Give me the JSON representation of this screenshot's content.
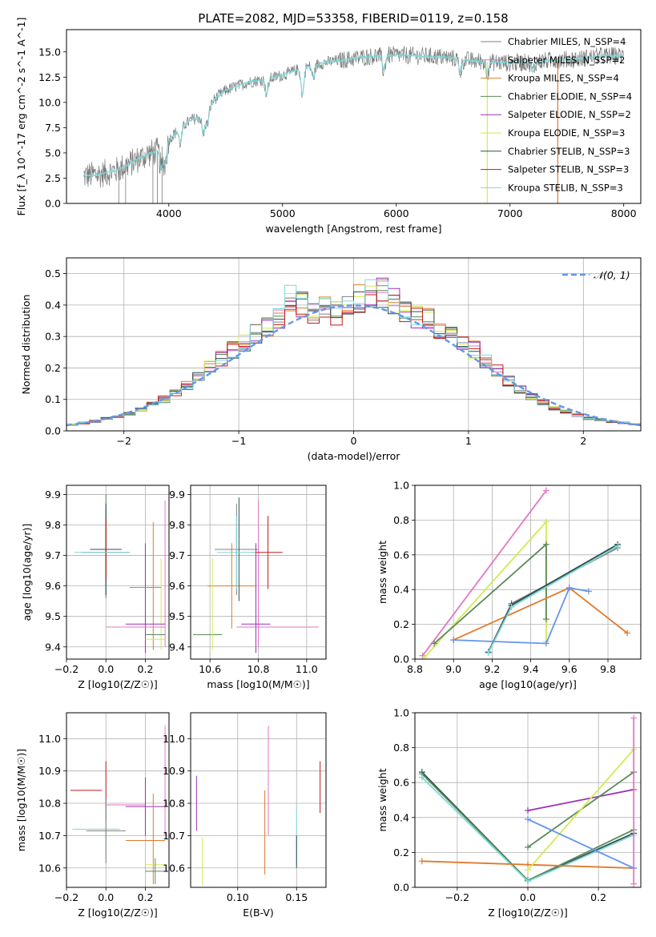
{
  "figure": {
    "title": "PLATE=2082, MJD=53358, FIBERID=0119, z=0.158"
  },
  "colors": {
    "Chabrier MILES": "#808080",
    "Salpeter MILES": "#e377c2",
    "Kroupa MILES": "#e07a2b",
    "Chabrier ELODIE": "#5a8a5a",
    "Salpeter ELODIE": "#9a30b8",
    "Kroupa ELODIE": "#d4ea50",
    "Chabrier STELIB": "#2f4f4f",
    "Salpeter STELIB": "#c41a1a",
    "Kroupa STELIB": "#7fd7d7",
    "spectrum": "#7a7a7a",
    "normal": "#6495ed",
    "grid": "#b0b0b0"
  },
  "chart_data": [
    {
      "id": "spectrum",
      "type": "line",
      "xlabel": "wavelength [Angstrom, rest frame]",
      "ylabel": "Flux [f_λ 10^-17 erg cm^-2 s^-1 A^-1]",
      "xlim": [
        3100,
        8150
      ],
      "ylim": [
        0,
        17.2
      ],
      "xticks": [
        4000,
        5000,
        6000,
        7000,
        8000
      ],
      "yticks": [
        0.0,
        2.5,
        5.0,
        7.5,
        10.0,
        12.5,
        15.0
      ],
      "grid": false,
      "legend_position": "upper right",
      "legend": [
        {
          "label": "Chabrier MILES, N_SSP=4",
          "color": "#808080"
        },
        {
          "label": "Salpeter MILES, N_SSP=2",
          "color": "#e377c2"
        },
        {
          "label": "Kroupa MILES, N_SSP=4",
          "color": "#e07a2b"
        },
        {
          "label": "Chabrier ELODIE, N_SSP=4",
          "color": "#5a8a5a"
        },
        {
          "label": "Salpeter ELODIE, N_SSP=2",
          "color": "#9a30b8"
        },
        {
          "label": "Kroupa ELODIE, N_SSP=3",
          "color": "#d4ea50"
        },
        {
          "label": "Chabrier STELIB, N_SSP=3",
          "color": "#2f4f4f"
        },
        {
          "label": "Salpeter STELIB, N_SSP=3",
          "color": "#c41a1a"
        },
        {
          "label": "Kroupa STELIB, N_SSP=3",
          "color": "#7fd7d7"
        }
      ],
      "continuum": [
        [
          3250,
          2.7
        ],
        [
          3400,
          2.9
        ],
        [
          3550,
          3.3
        ],
        [
          3700,
          4.2
        ],
        [
          3800,
          4.8
        ],
        [
          3900,
          5.2
        ],
        [
          4000,
          6.3
        ],
        [
          4100,
          7.5
        ],
        [
          4200,
          8.3
        ],
        [
          4300,
          8.6
        ],
        [
          4400,
          10.3
        ],
        [
          4500,
          11.2
        ],
        [
          4700,
          12.0
        ],
        [
          4900,
          12.4
        ],
        [
          5000,
          12.7
        ],
        [
          5200,
          13.5
        ],
        [
          5400,
          14.0
        ],
        [
          5600,
          14.3
        ],
        [
          5800,
          14.6
        ],
        [
          6000,
          14.7
        ],
        [
          6200,
          14.6
        ],
        [
          6400,
          14.5
        ],
        [
          6600,
          14.2
        ],
        [
          6800,
          14.0
        ],
        [
          7000,
          13.9
        ],
        [
          7200,
          14.0
        ],
        [
          7400,
          14.2
        ],
        [
          7600,
          14.3
        ],
        [
          7800,
          14.6
        ],
        [
          8000,
          14.6
        ]
      ],
      "absorption": [
        [
          3934,
          2.2
        ],
        [
          3968,
          2.0
        ],
        [
          4102,
          1.6
        ],
        [
          4304,
          1.8
        ],
        [
          4340,
          1.4
        ],
        [
          4861,
          1.5
        ],
        [
          5175,
          2.6
        ],
        [
          5270,
          1.2
        ],
        [
          5890,
          1.5
        ],
        [
          6563,
          1.2
        ],
        [
          6800,
          1.0
        ],
        [
          7200,
          1.0
        ]
      ],
      "vertical_drops": [
        {
          "x": 6800,
          "color": "#d4ea50"
        },
        {
          "x": 7420,
          "color": "#e07a2b"
        }
      ]
    },
    {
      "id": "residual-histogram",
      "type": "histogram",
      "xlabel": "(data-model)/error",
      "ylabel": "Normed distribution",
      "xlim": [
        -2.5,
        2.5
      ],
      "ylim": [
        0,
        0.55
      ],
      "xticks": [
        -2,
        -1,
        0,
        1,
        2
      ],
      "yticks": [
        0.0,
        0.1,
        0.2,
        0.3,
        0.4,
        0.5
      ],
      "grid": true,
      "legend_position": "upper right",
      "legend": [
        {
          "label": "𝒩(0, 1)",
          "color": "#6495ed",
          "style": "dashed"
        }
      ],
      "bin_width": 0.1,
      "base_density": [
        0.02,
        0.025,
        0.03,
        0.04,
        0.045,
        0.055,
        0.07,
        0.085,
        0.1,
        0.12,
        0.145,
        0.17,
        0.2,
        0.23,
        0.26,
        0.28,
        0.31,
        0.33,
        0.36,
        0.42,
        0.4,
        0.37,
        0.39,
        0.37,
        0.4,
        0.42,
        0.44,
        0.44,
        0.41,
        0.39,
        0.36,
        0.36,
        0.33,
        0.3,
        0.29,
        0.26,
        0.22,
        0.19,
        0.16,
        0.13,
        0.11,
        0.09,
        0.07,
        0.06,
        0.05,
        0.04,
        0.035,
        0.03,
        0.025,
        0.02
      ]
    },
    {
      "id": "age-vs-Z",
      "type": "errorbar",
      "xlabel": "Z [log10(Z/Z☉)]",
      "ylabel": "age [log10(age/yr)]",
      "xlim": [
        -0.2,
        0.32
      ],
      "ylim": [
        9.36,
        9.93
      ],
      "xticks": [
        -0.2,
        0.0,
        0.2
      ],
      "yticks": [
        9.4,
        9.5,
        9.6,
        9.7,
        9.8,
        9.9
      ],
      "grid": true,
      "points": [
        {
          "model": "Chabrier MILES",
          "x": 0.0,
          "xerr": 0.12,
          "y": 9.71,
          "yerr": 0.14
        },
        {
          "model": "Salpeter MILES",
          "x": 0.3,
          "xerr": 0.0,
          "y": 9.64,
          "yerr": 0.24
        },
        {
          "model": "Kroupa MILES",
          "x": 0.24,
          "xerr": 0.0,
          "y": 9.6,
          "yerr": 0.21
        },
        {
          "model": "Chabrier ELODIE",
          "x": 0.0,
          "xerr": 0.0,
          "y": 9.73,
          "yerr": 0.17
        },
        {
          "model": "Salpeter ELODIE",
          "x": 0.2,
          "xerr": 0.0,
          "y": 9.56,
          "yerr": 0.18
        },
        {
          "model": "Kroupa ELODIE",
          "x": 0.28,
          "xerr": 0.0,
          "y": 9.54,
          "yerr": 0.15
        },
        {
          "model": "Chabrier STELIB",
          "x": 0.0,
          "xerr": 0.08,
          "y": 9.72,
          "yerr": 0.15
        },
        {
          "model": "Salpeter STELIB",
          "x": 0.0,
          "xerr": 0.0,
          "y": 9.72,
          "yerr": 0.1
        },
        {
          "model": "Kroupa STELIB",
          "x": -0.02,
          "xerr": 0.14,
          "y": 9.71,
          "yerr": 0.0
        },
        {
          "model": "Salpeter MILES",
          "x": 0.15,
          "xerr": 0.15,
          "y": 9.465,
          "yerr": 0.0
        },
        {
          "model": "Salpeter ELODIE",
          "x": 0.2,
          "xerr": 0.1,
          "y": 9.475,
          "yerr": 0.0
        },
        {
          "model": "Kroupa MILES",
          "x": 0.2,
          "xerr": 0.08,
          "y": 9.595,
          "yerr": 0.0
        },
        {
          "model": "Chabrier ELODIE",
          "x": 0.25,
          "xerr": 0.05,
          "y": 9.44,
          "yerr": 0.0
        },
        {
          "model": "Kroupa ELODIE",
          "x": 0.25,
          "xerr": 0.05,
          "y": 9.425,
          "yerr": 0.0
        }
      ]
    },
    {
      "id": "age-vs-mass",
      "type": "errorbar",
      "xlabel": "mass [log10(M/M☉)]",
      "ylabel": "",
      "xlim": [
        10.52,
        11.08
      ],
      "ylim": [
        9.36,
        9.93
      ],
      "xticks": [
        10.6,
        10.8,
        11.0
      ],
      "yticks": [
        9.4,
        9.5,
        9.6,
        9.7,
        9.8,
        9.9
      ],
      "grid": true,
      "points": [
        {
          "model": "Chabrier MILES",
          "x": 10.71,
          "xerr": 0.09,
          "y": 9.72,
          "yerr": 0.15
        },
        {
          "model": "Salpeter MILES",
          "x": 10.88,
          "xerr": 0.17,
          "y": 9.465,
          "yerr": 0.0
        },
        {
          "model": "Salpeter MILES",
          "x": 10.8,
          "xerr": 0.0,
          "y": 9.64,
          "yerr": 0.24
        },
        {
          "model": "Kroupa MILES",
          "x": 10.69,
          "xerr": 0.1,
          "y": 9.6,
          "yerr": 0.14
        },
        {
          "model": "Chabrier ELODIE",
          "x": 10.59,
          "xerr": 0.06,
          "y": 9.44,
          "yerr": 0.0
        },
        {
          "model": "Salpeter ELODIE",
          "x": 10.79,
          "xerr": 0.06,
          "y": 9.475,
          "yerr": 0.0
        },
        {
          "model": "Salpeter ELODIE",
          "x": 10.79,
          "xerr": 0.0,
          "y": 9.56,
          "yerr": 0.18
        },
        {
          "model": "Kroupa ELODIE",
          "x": 10.61,
          "xerr": 0.0,
          "y": 9.54,
          "yerr": 0.15
        },
        {
          "model": "Chabrier STELIB",
          "x": 10.72,
          "xerr": 0.0,
          "y": 9.72,
          "yerr": 0.17
        },
        {
          "model": "Salpeter STELIB",
          "x": 10.84,
          "xerr": 0.06,
          "y": 9.71,
          "yerr": 0.12
        },
        {
          "model": "Kroupa STELIB",
          "x": 10.71,
          "xerr": 0.08,
          "y": 9.71,
          "yerr": 0.12
        }
      ]
    },
    {
      "id": "weight-vs-age",
      "type": "line",
      "xlabel": "age [log10(age/yr)]",
      "ylabel": "mass weight",
      "xlim": [
        8.8,
        9.97
      ],
      "ylim": [
        0,
        1.0
      ],
      "xticks": [
        8.8,
        9.0,
        9.2,
        9.4,
        9.6,
        9.8
      ],
      "yticks": [
        0.0,
        0.2,
        0.4,
        0.6,
        0.8,
        1.0
      ],
      "grid": true,
      "series": [
        {
          "model": "Salpeter MILES",
          "x": [
            8.84,
            9.48
          ],
          "y": [
            0.02,
            0.97
          ]
        },
        {
          "model": "Kroupa ELODIE",
          "x": [
            8.85,
            9.48,
            9.48
          ],
          "y": [
            0.01,
            0.79,
            0.1
          ]
        },
        {
          "model": "Chabrier ELODIE",
          "x": [
            8.9,
            9.48,
            9.48
          ],
          "y": [
            0.09,
            0.66,
            0.23
          ]
        },
        {
          "model": "Kroupa MILES",
          "x": [
            9.0,
            9.6,
            9.9
          ],
          "y": [
            0.11,
            0.41,
            0.15
          ]
        },
        {
          "model": "Chabrier MILES",
          "x": [
            9.18,
            9.3,
            9.85
          ],
          "y": [
            0.04,
            0.32,
            0.64
          ]
        },
        {
          "model": "Chabrier STELIB",
          "x": [
            9.18,
            9.3,
            9.85
          ],
          "y": [
            0.04,
            0.31,
            0.66
          ]
        },
        {
          "model": "Kroupa STELIB",
          "x": [
            9.18,
            9.3,
            9.85
          ],
          "y": [
            0.035,
            0.3,
            0.65
          ]
        },
        {
          "model": "normal-blue",
          "x": [
            9.0,
            9.48,
            9.6,
            9.7
          ],
          "y": [
            0.11,
            0.09,
            0.41,
            0.39
          ]
        }
      ]
    },
    {
      "id": "mass-vs-Z",
      "type": "errorbar",
      "xlabel": "Z [log10(Z/Z☉)]",
      "ylabel": "mass [log10(M/M☉)]",
      "xlim": [
        -0.2,
        0.32
      ],
      "ylim": [
        10.54,
        11.08
      ],
      "xticks": [
        -0.2,
        0.0,
        0.2
      ],
      "yticks": [
        10.6,
        10.7,
        10.8,
        10.9,
        11.0
      ],
      "grid": true,
      "points": [
        {
          "model": "Salpeter STELIB",
          "x": -0.1,
          "xerr": 0.08,
          "y": 10.84,
          "yerr": 0.0
        },
        {
          "model": "Salpeter STELIB",
          "x": 0.0,
          "xerr": 0.0,
          "y": 10.84,
          "yerr": 0.09
        },
        {
          "model": "Kroupa STELIB",
          "x": -0.05,
          "xerr": 0.12,
          "y": 10.72,
          "yerr": 0.0
        },
        {
          "model": "Kroupa STELIB",
          "x": 0.0,
          "xerr": 0.0,
          "y": 10.72,
          "yerr": 0.09
        },
        {
          "model": "Chabrier MILES",
          "x": 0.0,
          "xerr": 0.1,
          "y": 10.715,
          "yerr": 0.1
        },
        {
          "model": "Salpeter MILES",
          "x": 0.1,
          "xerr": 0.1,
          "y": 10.795,
          "yerr": 0.0
        },
        {
          "model": "Salpeter MILES",
          "x": 0.3,
          "xerr": 0.0,
          "y": 10.87,
          "yerr": 0.17
        },
        {
          "model": "Salpeter ELODIE",
          "x": 0.2,
          "xerr": 0.1,
          "y": 10.79,
          "yerr": 0.0
        },
        {
          "model": "Salpeter ELODIE",
          "x": 0.2,
          "xerr": 0.0,
          "y": 10.79,
          "yerr": 0.09
        },
        {
          "model": "Kroupa MILES",
          "x": 0.2,
          "xerr": 0.1,
          "y": 10.685,
          "yerr": 0.0
        },
        {
          "model": "Kroupa MILES",
          "x": 0.24,
          "xerr": 0.0,
          "y": 10.69,
          "yerr": 0.14
        },
        {
          "model": "Kroupa ELODIE",
          "x": 0.25,
          "xerr": 0.05,
          "y": 10.61,
          "yerr": 0.0
        },
        {
          "model": "Chabrier ELODIE",
          "x": 0.25,
          "xerr": 0.05,
          "y": 10.59,
          "yerr": 0.0
        },
        {
          "model": "Chabrier ELODIE",
          "x": 0.25,
          "xerr": 0.0,
          "y": 10.59,
          "yerr": 0.04
        }
      ]
    },
    {
      "id": "mass-vs-ebv",
      "type": "errorbar",
      "xlabel": "E(B-V)",
      "ylabel": "",
      "xlim": [
        0.06,
        0.175
      ],
      "ylim": [
        10.54,
        11.08
      ],
      "xticks": [
        0.1,
        0.15
      ],
      "yticks": [
        10.6,
        10.7,
        10.8,
        10.9,
        11.0
      ],
      "grid": true,
      "points": [
        {
          "model": "Salpeter ELODIE",
          "x": 0.065,
          "xerr": 0.0,
          "y": 10.8,
          "yerr": 0.085
        },
        {
          "model": "Kroupa ELODIE",
          "x": 0.07,
          "xerr": 0.0,
          "y": 10.62,
          "yerr": 0.075
        },
        {
          "model": "Kroupa MILES",
          "x": 0.123,
          "xerr": 0.0,
          "y": 10.71,
          "yerr": 0.13
        },
        {
          "model": "Salpeter MILES",
          "x": 0.126,
          "xerr": 0.0,
          "y": 10.87,
          "yerr": 0.17
        },
        {
          "model": "Kroupa STELIB",
          "x": 0.15,
          "xerr": 0.0,
          "y": 10.7,
          "yerr": 0.09
        },
        {
          "model": "Chabrier STELIB",
          "x": 0.15,
          "xerr": 0.0,
          "y": 10.65,
          "yerr": 0.05
        },
        {
          "model": "Salpeter STELIB",
          "x": 0.17,
          "xerr": 0.0,
          "y": 10.85,
          "yerr": 0.08
        }
      ]
    },
    {
      "id": "weight-vs-Z",
      "type": "line",
      "xlabel": "Z [log10(Z/Z☉)]",
      "ylabel": "mass weight",
      "xlim": [
        -0.32,
        0.32
      ],
      "ylim": [
        0,
        1.0
      ],
      "xticks": [
        -0.2,
        0.0,
        0.2
      ],
      "yticks": [
        0.0,
        0.2,
        0.4,
        0.6,
        0.8,
        1.0
      ],
      "grid": true,
      "series": [
        {
          "model": "Chabrier STELIB",
          "x": [
            -0.3,
            0.0,
            0.3
          ],
          "y": [
            0.66,
            0.04,
            0.31
          ]
        },
        {
          "model": "Chabrier ELODIE",
          "x": [
            -0.3,
            0.0,
            0.3
          ],
          "y": [
            0.65,
            0.04,
            0.33
          ]
        },
        {
          "model": "Kroupa STELIB",
          "x": [
            -0.3,
            0.0,
            0.3
          ],
          "y": [
            0.63,
            0.035,
            0.3
          ]
        },
        {
          "model": "Kroupa MILES",
          "x": [
            -0.3,
            0.0,
            0.3
          ],
          "y": [
            0.15,
            0.13,
            0.11
          ]
        },
        {
          "model": "Salpeter ELODIE",
          "x": [
            0.0,
            0.3
          ],
          "y": [
            0.44,
            0.56
          ]
        },
        {
          "model": "Chabrier ELODIE",
          "x": [
            0.0,
            0.3
          ],
          "y": [
            0.23,
            0.66
          ]
        },
        {
          "model": "Kroupa ELODIE",
          "x": [
            0.0,
            0.3
          ],
          "y": [
            0.1,
            0.79
          ]
        },
        {
          "model": "normal-blue",
          "x": [
            0.0,
            0.3
          ],
          "y": [
            0.39,
            0.11
          ]
        },
        {
          "model": "Salpeter MILES",
          "x": [
            0.3,
            0.3
          ],
          "y": [
            0.97,
            0.02
          ]
        }
      ]
    }
  ]
}
